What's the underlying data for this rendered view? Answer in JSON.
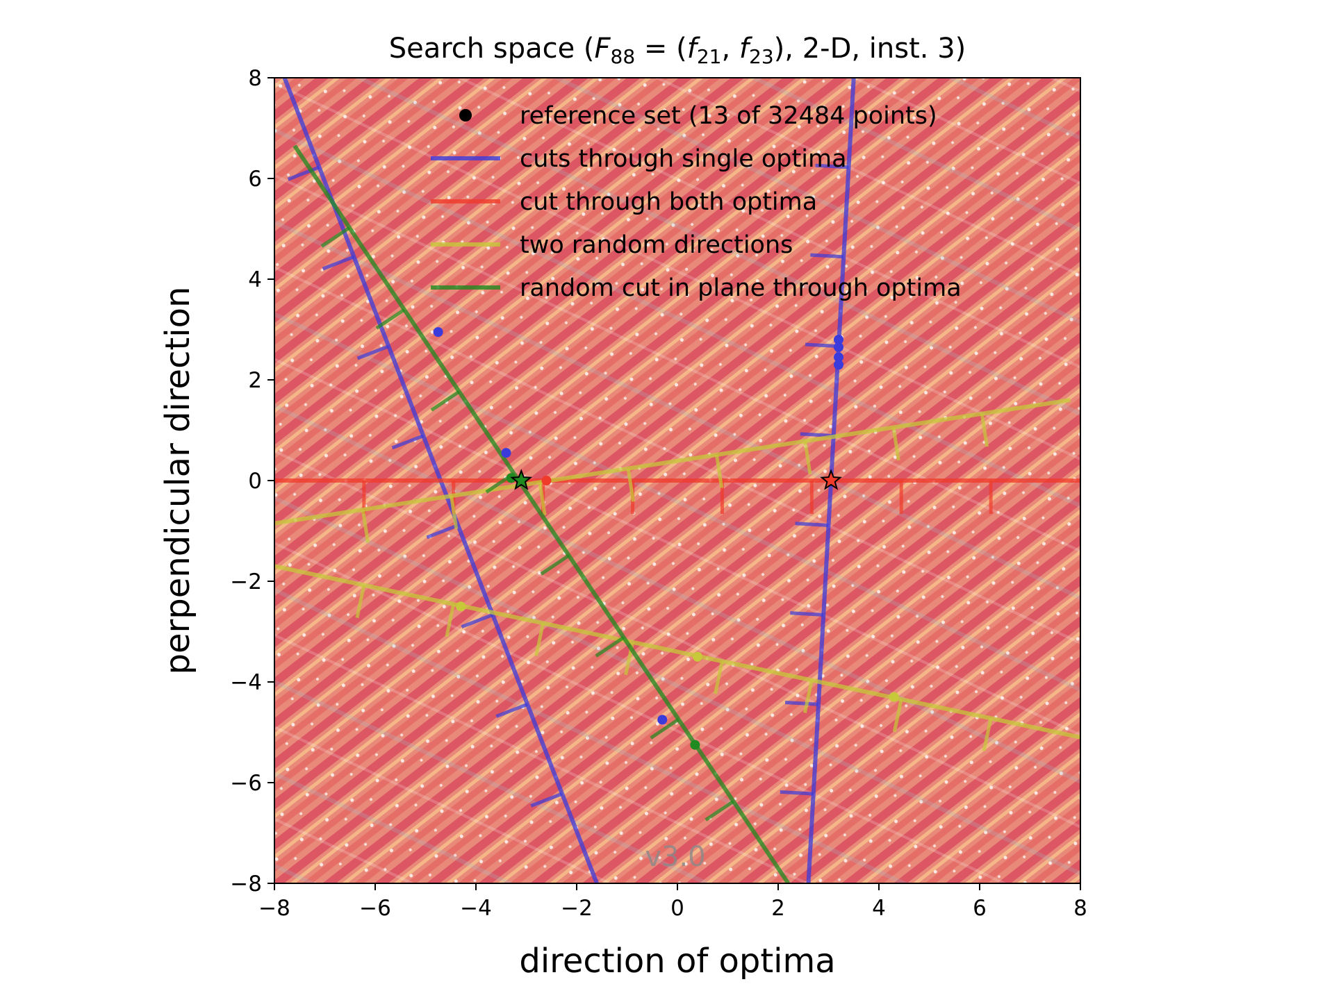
{
  "chart_data": {
    "type": "line",
    "title_parts": {
      "prefix": "Search space (",
      "F": "F",
      "F_sub": "88",
      "eq": " = (",
      "f1": "f",
      "f1_sub": "21",
      "sep": ", ",
      "f2": "f",
      "f2_sub": "23",
      "suffix": "), 2-D, inst. 3)"
    },
    "xlabel": "direction of optima",
    "ylabel": "perpendicular direction",
    "xlim": [
      -8,
      8
    ],
    "ylim": [
      -8,
      8
    ],
    "xticks": [
      -8,
      -6,
      -4,
      -2,
      0,
      2,
      4,
      6,
      8
    ],
    "yticks": [
      -8,
      -6,
      -4,
      -2,
      0,
      2,
      4,
      6,
      8
    ],
    "xtick_labels": [
      "−8",
      "−6",
      "−4",
      "−2",
      "0",
      "2",
      "4",
      "6",
      "8"
    ],
    "ytick_labels": [
      "−8",
      "−6",
      "−4",
      "−2",
      "0",
      "2",
      "4",
      "6",
      "8"
    ],
    "legend_position": "upper-right",
    "watermark": "v3.0",
    "colors": {
      "background": "#e8897a",
      "blue": "#3b3bdc",
      "red": "#f03a2a",
      "yellow": "#c7c83a",
      "green": "#1f8a1f",
      "black": "#000000"
    },
    "legend": [
      {
        "label": "reference set (13 of 32484 points)",
        "kind": "marker",
        "color": "#000000"
      },
      {
        "label": "cuts through single optima",
        "kind": "line",
        "color": "#3b3bdc"
      },
      {
        "label": "cut through both optima",
        "kind": "line",
        "color": "#f03a2a"
      },
      {
        "label": "two random directions",
        "kind": "line",
        "color": "#c7c83a"
      },
      {
        "label": "random cut in plane through optima",
        "kind": "line",
        "color": "#1f8a1f"
      }
    ],
    "series": [
      {
        "legend_index": 1,
        "color": "#3b3bdc",
        "x": [
          -7.8,
          -1.6
        ],
        "y": [
          8.0,
          -8.0
        ]
      },
      {
        "legend_index": 1,
        "color": "#3b3bdc",
        "x": [
          3.5,
          2.6
        ],
        "y": [
          8.0,
          -8.0
        ]
      },
      {
        "legend_index": 2,
        "color": "#f03a2a",
        "x": [
          -8.0,
          8.0
        ],
        "y": [
          0.0,
          0.0
        ]
      },
      {
        "legend_index": 3,
        "color": "#c7c83a",
        "x": [
          -8.0,
          7.8
        ],
        "y": [
          -0.85,
          1.6
        ]
      },
      {
        "legend_index": 3,
        "color": "#c7c83a",
        "x": [
          -8.0,
          8.0
        ],
        "y": [
          -1.7,
          -5.1
        ]
      },
      {
        "legend_index": 4,
        "color": "#1f8a1f",
        "x": [
          -7.6,
          2.2
        ],
        "y": [
          6.65,
          -8.0
        ]
      }
    ],
    "optima": [
      {
        "x": -3.1,
        "y": 0.0,
        "marker": "star",
        "color": "#1f8a1f"
      },
      {
        "x": 3.05,
        "y": 0.0,
        "marker": "star",
        "color": "#f03a2a"
      }
    ],
    "reference_points": [
      {
        "x": 3.2,
        "y": 2.8,
        "color": "#3b3bdc"
      },
      {
        "x": 3.2,
        "y": 2.65,
        "color": "#3b3bdc"
      },
      {
        "x": 3.2,
        "y": 2.45,
        "color": "#3b3bdc"
      },
      {
        "x": 3.2,
        "y": 2.3,
        "color": "#3b3bdc"
      },
      {
        "x": -4.75,
        "y": 2.95,
        "color": "#3b3bdc"
      },
      {
        "x": -3.4,
        "y": 0.55,
        "color": "#3b3bdc"
      },
      {
        "x": -0.3,
        "y": -4.75,
        "color": "#3b3bdc"
      },
      {
        "x": -3.3,
        "y": 0.05,
        "color": "#1f8a1f"
      },
      {
        "x": 0.35,
        "y": -5.25,
        "color": "#1f8a1f"
      },
      {
        "x": -2.6,
        "y": 0.0,
        "color": "#f03a2a"
      },
      {
        "x": -4.3,
        "y": -2.5,
        "color": "#c7c83a"
      },
      {
        "x": 0.4,
        "y": -3.5,
        "color": "#c7c83a"
      },
      {
        "x": 4.3,
        "y": -4.3,
        "color": "#c7c83a"
      }
    ]
  }
}
